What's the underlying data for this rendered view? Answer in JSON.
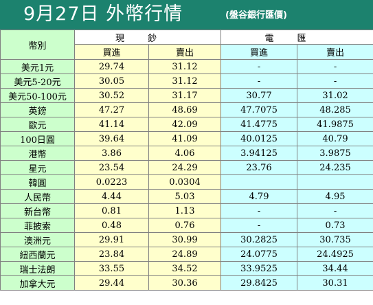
{
  "header": {
    "title": "9月27日 外幣行情",
    "subtitle": "(盤谷銀行匯價)"
  },
  "table": {
    "corner_label": "幣別",
    "groups": [
      "現鈔",
      "電匯"
    ],
    "subheaders": [
      "買進",
      "賣出",
      "買進",
      "賣出"
    ],
    "rows": [
      {
        "currency": "美元1元",
        "cash_buy": "29.74",
        "cash_sell": "31.12",
        "tt_buy": "-",
        "tt_sell": "-"
      },
      {
        "currency": "美元5-20元",
        "cash_buy": "30.05",
        "cash_sell": "31.12",
        "tt_buy": "-",
        "tt_sell": "-"
      },
      {
        "currency": "美元50-100元",
        "cash_buy": "30.52",
        "cash_sell": "31.17",
        "tt_buy": "30.77",
        "tt_sell": "31.02"
      },
      {
        "currency": "英鎊",
        "cash_buy": "47.27",
        "cash_sell": "48.69",
        "tt_buy": "47.7075",
        "tt_sell": "48.285"
      },
      {
        "currency": "歐元",
        "cash_buy": "41.14",
        "cash_sell": "42.09",
        "tt_buy": "41.4775",
        "tt_sell": "41.9875"
      },
      {
        "currency": "100日圓",
        "cash_buy": "39.64",
        "cash_sell": "41.09",
        "tt_buy": "40.0125",
        "tt_sell": "40.79"
      },
      {
        "currency": "港幣",
        "cash_buy": "3.86",
        "cash_sell": "4.06",
        "tt_buy": "3.94125",
        "tt_sell": "3.9875"
      },
      {
        "currency": "星元",
        "cash_buy": "23.54",
        "cash_sell": "24.29",
        "tt_buy": "23.76",
        "tt_sell": "24.235"
      },
      {
        "currency": "韓圓",
        "cash_buy": "0.0223",
        "cash_sell": "0.0304",
        "tt_buy": "",
        "tt_sell": ""
      },
      {
        "currency": "人民幣",
        "cash_buy": "4.44",
        "cash_sell": "5.03",
        "tt_buy": "4.79",
        "tt_sell": "4.95"
      },
      {
        "currency": "新台幣",
        "cash_buy": "0.81",
        "cash_sell": "1.13",
        "tt_buy": "-",
        "tt_sell": "-"
      },
      {
        "currency": "菲披索",
        "cash_buy": "0.48",
        "cash_sell": "0.76",
        "tt_buy": "-",
        "tt_sell": "0.73"
      },
      {
        "currency": "澳洲元",
        "cash_buy": "29.91",
        "cash_sell": "30.99",
        "tt_buy": "30.2825",
        "tt_sell": "30.735"
      },
      {
        "currency": "紐西蘭元",
        "cash_buy": "23.84",
        "cash_sell": "24.89",
        "tt_buy": "24.0775",
        "tt_sell": "24.4925"
      },
      {
        "currency": "瑞士法朗",
        "cash_buy": "33.55",
        "cash_sell": "34.52",
        "tt_buy": "33.9525",
        "tt_sell": "34.44"
      },
      {
        "currency": "加拿大元",
        "cash_buy": "29.44",
        "cash_sell": "30.36",
        "tt_buy": "29.8425",
        "tt_sell": "30.31"
      }
    ]
  },
  "colors": {
    "title_bar": "#1c826e",
    "currency_column": "#ccffcc",
    "cash_columns": "#ffffcc",
    "tt_columns": "#ccffff"
  }
}
